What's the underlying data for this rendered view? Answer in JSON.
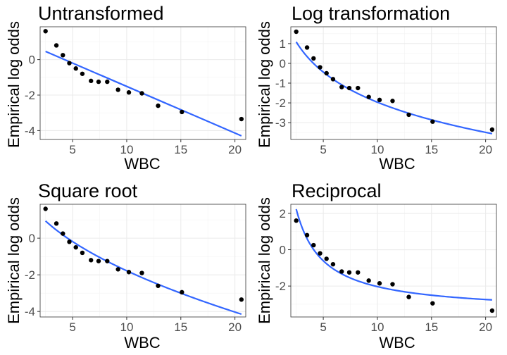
{
  "chart_data": [
    {
      "type": "scatter",
      "title": "Untransformed",
      "xlabel": "WBC",
      "ylabel": "Empirical log odds",
      "x": [
        2.5,
        3.5,
        4.1,
        4.7,
        5.3,
        5.9,
        6.7,
        7.4,
        8.2,
        9.2,
        10.2,
        11.4,
        12.9,
        15.1,
        20.6
      ],
      "y": [
        1.6,
        0.8,
        0.25,
        -0.2,
        -0.5,
        -0.8,
        -1.2,
        -1.25,
        -1.25,
        -1.7,
        -1.85,
        -1.9,
        -2.6,
        -2.95,
        -3.35
      ],
      "fit": {
        "transform": "identity",
        "intercept": 1.12,
        "slope": -0.263
      },
      "xlim": [
        2,
        21
      ],
      "ylim": [
        -4.5,
        1.85
      ],
      "xticks": [
        5,
        10,
        15,
        20
      ],
      "xtick_labels": [
        "5",
        "10",
        "15",
        "20"
      ],
      "yticks": [
        0,
        -2,
        -4
      ],
      "ytick_labels": [
        "0",
        "-2",
        "-4"
      ],
      "grid": true
    },
    {
      "type": "scatter",
      "title": "Log transformation",
      "xlabel": "WBC",
      "ylabel": "Empirical log odds",
      "x": [
        2.5,
        3.5,
        4.1,
        4.7,
        5.3,
        5.9,
        6.7,
        7.4,
        8.2,
        9.2,
        10.2,
        11.4,
        12.9,
        15.1,
        20.6
      ],
      "y": [
        1.6,
        0.8,
        0.25,
        -0.2,
        -0.5,
        -0.8,
        -1.2,
        -1.25,
        -1.25,
        -1.7,
        -1.85,
        -1.9,
        -2.6,
        -2.95,
        -3.35
      ],
      "fit": {
        "transform": "log",
        "intercept": 3.1,
        "slope": -2.2
      },
      "xlim": [
        2,
        21
      ],
      "ylim": [
        -3.85,
        1.85
      ],
      "xticks": [
        5,
        10,
        15,
        20
      ],
      "xtick_labels": [
        "5",
        "10",
        "15",
        "20"
      ],
      "yticks": [
        1,
        0,
        -1,
        -2,
        -3
      ],
      "ytick_labels": [
        "1",
        "0",
        "-1",
        "-2",
        "-3"
      ],
      "grid": true
    },
    {
      "type": "scatter",
      "title": "Square root",
      "xlabel": "WBC",
      "ylabel": "Empirical log odds",
      "x": [
        2.5,
        3.5,
        4.1,
        4.7,
        5.3,
        5.9,
        6.7,
        7.4,
        8.2,
        9.2,
        10.2,
        11.4,
        12.9,
        15.1,
        20.6
      ],
      "y": [
        1.6,
        0.8,
        0.25,
        -0.2,
        -0.5,
        -0.8,
        -1.2,
        -1.25,
        -1.25,
        -1.7,
        -1.85,
        -1.9,
        -2.6,
        -2.95,
        -3.35
      ],
      "fit": {
        "transform": "sqrt",
        "intercept": 3.66,
        "slope": -1.72
      },
      "xlim": [
        2,
        21
      ],
      "ylim": [
        -4.3,
        1.85
      ],
      "xticks": [
        5,
        10,
        15,
        20
      ],
      "xtick_labels": [
        "5",
        "10",
        "15",
        "20"
      ],
      "yticks": [
        0,
        -2,
        -4
      ],
      "ytick_labels": [
        "0",
        "-2",
        "-4"
      ],
      "grid": true
    },
    {
      "type": "scatter",
      "title": "Reciprocal",
      "xlabel": "WBC",
      "ylabel": "Empirical log odds",
      "x": [
        2.5,
        3.5,
        4.1,
        4.7,
        5.3,
        5.9,
        6.7,
        7.4,
        8.2,
        9.2,
        10.2,
        11.4,
        12.9,
        15.1,
        20.6
      ],
      "y": [
        1.6,
        0.8,
        0.25,
        -0.2,
        -0.5,
        -0.8,
        -1.2,
        -1.25,
        -1.25,
        -1.7,
        -1.85,
        -1.9,
        -2.6,
        -2.95,
        -3.35
      ],
      "fit": {
        "transform": "reciprocal",
        "intercept": -3.45,
        "slope": 14.2
      },
      "xlim": [
        2,
        21
      ],
      "ylim": [
        -3.7,
        2.5
      ],
      "xticks": [
        5,
        10,
        15,
        20
      ],
      "xtick_labels": [
        "5",
        "10",
        "15",
        "20"
      ],
      "yticks": [
        2,
        0,
        -2
      ],
      "ytick_labels": [
        "2",
        "0",
        "-2"
      ],
      "grid": true
    }
  ],
  "colors": {
    "fit_line": "#3366ff",
    "points": "#000000",
    "grid": "#ebebeb",
    "border": "#333333"
  }
}
